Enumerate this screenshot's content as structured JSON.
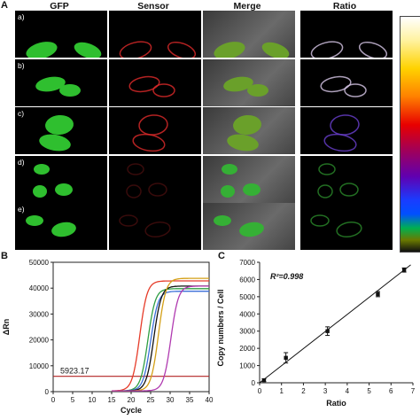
{
  "panel_letters": {
    "a": "A",
    "b": "B",
    "c": "C"
  },
  "column_headers": [
    "GFP",
    "Sensor",
    "Merge",
    "Ratio"
  ],
  "row_labels": [
    "a)",
    "b)",
    "c)",
    "d)",
    "e)"
  ],
  "colors": {
    "gfp": "#2fbf2f",
    "sensor": "#e02a2a",
    "threshold": "#b22222"
  },
  "chart_data": [
    {
      "type": "line",
      "panel": "B",
      "xlabel": "Cycle",
      "ylabel": "ΔRn",
      "xlim": [
        0,
        40
      ],
      "ylim": [
        0,
        50000
      ],
      "xticks": [
        "0",
        "5",
        "10",
        "15",
        "20",
        "25",
        "30",
        "35",
        "40"
      ],
      "yticks": [
        "0",
        "10000",
        "20000",
        "30000",
        "40000",
        "50000"
      ],
      "annotation": "5923.17",
      "threshold": 5923.17,
      "series": [
        {
          "color": "#e63c2a",
          "midpoint": 22.2,
          "plateau": 42500
        },
        {
          "color": "#2f9e44",
          "midpoint": 24.3,
          "plateau": 39500
        },
        {
          "color": "#3b6fd8",
          "midpoint": 25.0,
          "plateau": 38500
        },
        {
          "color": "#111111",
          "midpoint": 25.8,
          "plateau": 40500
        },
        {
          "color": "#d4a017",
          "midpoint": 27.0,
          "plateau": 43500
        },
        {
          "color": "#b03ab0",
          "midpoint": 30.2,
          "plateau": 40500
        }
      ]
    },
    {
      "type": "scatter",
      "panel": "C",
      "xlabel": "Ratio",
      "ylabel": "Copy numbers / Cell",
      "xlim": [
        0,
        7
      ],
      "ylim": [
        0,
        7000
      ],
      "xticks": [
        "0",
        "1",
        "2",
        "3",
        "4",
        "5",
        "6",
        "7"
      ],
      "yticks": [
        "0",
        "1000",
        "2000",
        "3000",
        "4000",
        "5000",
        "6000",
        "7000"
      ],
      "annotation": "R²=0.998",
      "points": [
        {
          "x": 0.2,
          "y": 150,
          "err": 80
        },
        {
          "x": 1.2,
          "y": 1450,
          "err": 300
        },
        {
          "x": 3.1,
          "y": 3000,
          "err": 250
        },
        {
          "x": 5.4,
          "y": 5150,
          "err": 150
        },
        {
          "x": 6.6,
          "y": 6550,
          "err": 120
        }
      ],
      "fit": {
        "x": [
          0,
          6.9
        ],
        "y": [
          0,
          6850
        ]
      }
    }
  ]
}
